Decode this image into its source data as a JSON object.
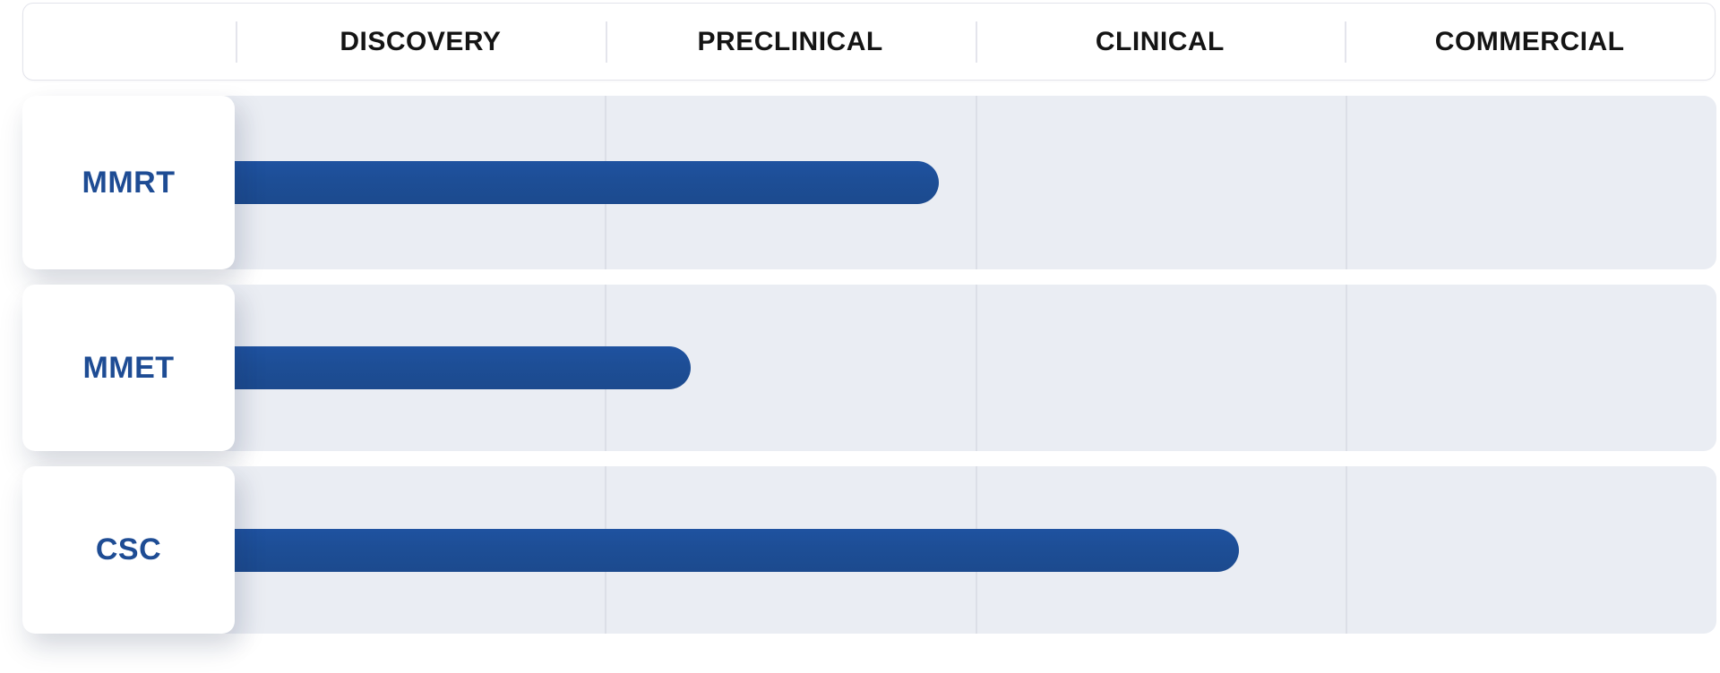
{
  "colors": {
    "bar": "#1d4e96",
    "row_label": "#1e4c94",
    "header_text": "#141414",
    "row_band": "#eaedf3",
    "gridline": "#dcdfe7",
    "header_border": "#e3e4eb",
    "card_bg": "#ffffff"
  },
  "chart_data": {
    "type": "bar",
    "variant": "horizontal-pipeline-progress",
    "title": "",
    "stages": [
      "DISCOVERY",
      "PRECLINICAL",
      "CLINICAL",
      "COMMERCIAL"
    ],
    "stage_scale_max": 4,
    "grid": "vertical stage separators on",
    "legend": false,
    "rows": [
      {
        "label": "MMRT",
        "stage_progress": 1.9,
        "progress_fraction": 0.476,
        "ends_in_stage": "PRECLINICAL"
      },
      {
        "label": "MMET",
        "stage_progress": 1.23,
        "progress_fraction": 0.308,
        "ends_in_stage": "PRECLINICAL"
      },
      {
        "label": "CSC",
        "stage_progress": 2.71,
        "progress_fraction": 0.678,
        "ends_in_stage": "CLINICAL"
      }
    ]
  }
}
